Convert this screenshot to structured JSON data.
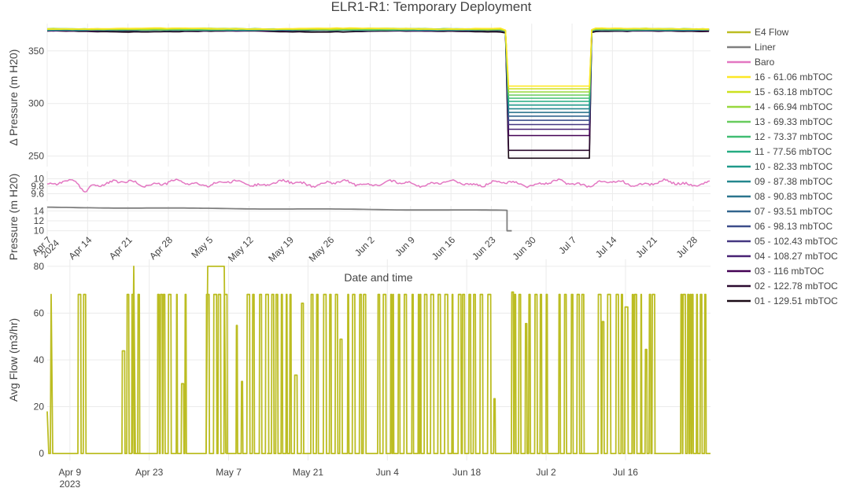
{
  "title": "ELR1-R1: Temporary Deployment",
  "colors": {
    "e4_flow": "#bcbd22",
    "liner": "#7f7f7f",
    "baro": "#e377c2",
    "grid": "#ebebeb",
    "text": "#444444",
    "depths": [
      "#fde725",
      "#cde11d",
      "#98d83e",
      "#67cc5c",
      "#40bd72",
      "#25ac82",
      "#1f998a",
      "#24878e",
      "#2b758e",
      "#32648e",
      "#3d4d8a",
      "#453781",
      "#482173",
      "#440154",
      "#2b0a2f",
      "#1a0a16"
    ]
  },
  "chart_data": [
    {
      "type": "line",
      "panel": "delta-pressure",
      "ylabel": "Δ Pressure (m H20)",
      "ylim": [
        240,
        376
      ],
      "yticks": [
        250,
        300,
        350
      ],
      "grid": true,
      "series": [
        {
          "name": "16 - 61.06 mbTOC",
          "baseline": 371.2,
          "drawdown": 316.5
        },
        {
          "name": "15 - 63.18 mbTOC",
          "baseline": 371.0,
          "drawdown": 314.0
        },
        {
          "name": "14 - 66.94 mbTOC",
          "baseline": 370.8,
          "drawdown": 311.0
        },
        {
          "name": "13 - 69.33 mbTOC",
          "baseline": 370.6,
          "drawdown": 308.0
        },
        {
          "name": "12 - 73.37 mbTOC",
          "baseline": 370.5,
          "drawdown": 305.0
        },
        {
          "name": "11 - 77.56 mbTOC",
          "baseline": 370.4,
          "drawdown": 302.0
        },
        {
          "name": "10 - 82.33 mbTOC",
          "baseline": 370.3,
          "drawdown": 298.5
        },
        {
          "name": "09 - 87.38 mbTOC",
          "baseline": 370.2,
          "drawdown": 295.0
        },
        {
          "name": "08 - 90.83 mbTOC",
          "baseline": 370.1,
          "drawdown": 291.5
        },
        {
          "name": "07 - 93.51 mbTOC",
          "baseline": 370.0,
          "drawdown": 288.0
        },
        {
          "name": "06 - 98.13 mbTOC",
          "baseline": 369.9,
          "drawdown": 284.0
        },
        {
          "name": "05 - 102.43 mbTOC",
          "baseline": 369.8,
          "drawdown": 280.0
        },
        {
          "name": "04 - 108.27 mbTOC",
          "baseline": 369.7,
          "drawdown": 275.5
        },
        {
          "name": "03 - 116 mbTOC",
          "baseline": 369.6,
          "drawdown": 269.5
        },
        {
          "name": "02 - 122.78 mbTOC",
          "baseline": 369.5,
          "drawdown": 255.5
        },
        {
          "name": "01 - 129.51 mbTOC",
          "baseline": 368.5,
          "drawdown": 248.0
        }
      ],
      "drawdown_period": [
        "2024-06-26",
        "2024-07-10"
      ]
    },
    {
      "type": "line",
      "panel": "baro",
      "ylim": [
        9.4,
        10.2
      ],
      "yticks": [
        "9.6",
        "9.8",
        "10"
      ],
      "series": [
        {
          "name": "Baro",
          "mean": 9.88,
          "amplitude": 0.1
        }
      ]
    },
    {
      "type": "line",
      "panel": "liner",
      "ylabel": "Pressure (m H20)",
      "ylim": [
        9,
        15
      ],
      "yticks": [
        "10",
        "12",
        "14"
      ],
      "xlabel": "Date and time",
      "x_range": [
        "2024-04-07",
        "2024-07-31"
      ],
      "x_ticks": [
        {
          "date": "2024-04-07",
          "label": "Apr 7",
          "sub": "2024"
        },
        {
          "date": "2024-04-14",
          "label": "Apr 14"
        },
        {
          "date": "2024-04-21",
          "label": "Apr 21"
        },
        {
          "date": "2024-04-28",
          "label": "Apr 28"
        },
        {
          "date": "2024-05-05",
          "label": "May 5"
        },
        {
          "date": "2024-05-12",
          "label": "May 12"
        },
        {
          "date": "2024-05-19",
          "label": "May 19"
        },
        {
          "date": "2024-05-26",
          "label": "May 26"
        },
        {
          "date": "2024-06-02",
          "label": "Jun 2"
        },
        {
          "date": "2024-06-09",
          "label": "Jun 9"
        },
        {
          "date": "2024-06-16",
          "label": "Jun 16"
        },
        {
          "date": "2024-06-23",
          "label": "Jun 23"
        },
        {
          "date": "2024-06-30",
          "label": "Jun 30"
        },
        {
          "date": "2024-07-07",
          "label": "Jul 7"
        },
        {
          "date": "2024-07-14",
          "label": "Jul 14"
        },
        {
          "date": "2024-07-21",
          "label": "Jul 21"
        },
        {
          "date": "2024-07-28",
          "label": "Jul 28"
        }
      ],
      "series": [
        {
          "name": "Liner",
          "start": 14.7,
          "end": 14.1,
          "drop_date": "2024-06-26",
          "after": 10.0
        }
      ]
    },
    {
      "type": "line",
      "panel": "flow",
      "ylabel": "Avg Flow (m3/hr)",
      "ylim": [
        -3,
        83
      ],
      "yticks": [
        0,
        20,
        40,
        60,
        80
      ],
      "x_range": [
        "2023-04-05",
        "2023-07-31"
      ],
      "x_ticks": [
        {
          "date": "2023-04-09",
          "label": "Apr 9",
          "sub": "2023"
        },
        {
          "date": "2023-04-23",
          "label": "Apr 23"
        },
        {
          "date": "2023-05-07",
          "label": "May 7"
        },
        {
          "date": "2023-05-21",
          "label": "May 21"
        },
        {
          "date": "2023-06-04",
          "label": "Jun 4"
        },
        {
          "date": "2023-06-18",
          "label": "Jun 18"
        },
        {
          "date": "2023-07-02",
          "label": "Jul 2"
        },
        {
          "date": "2023-07-16",
          "label": "Jul 16"
        }
      ],
      "series": [
        {
          "name": "E4 Flow",
          "typical_on": 68,
          "peak": 80
        }
      ]
    }
  ]
}
